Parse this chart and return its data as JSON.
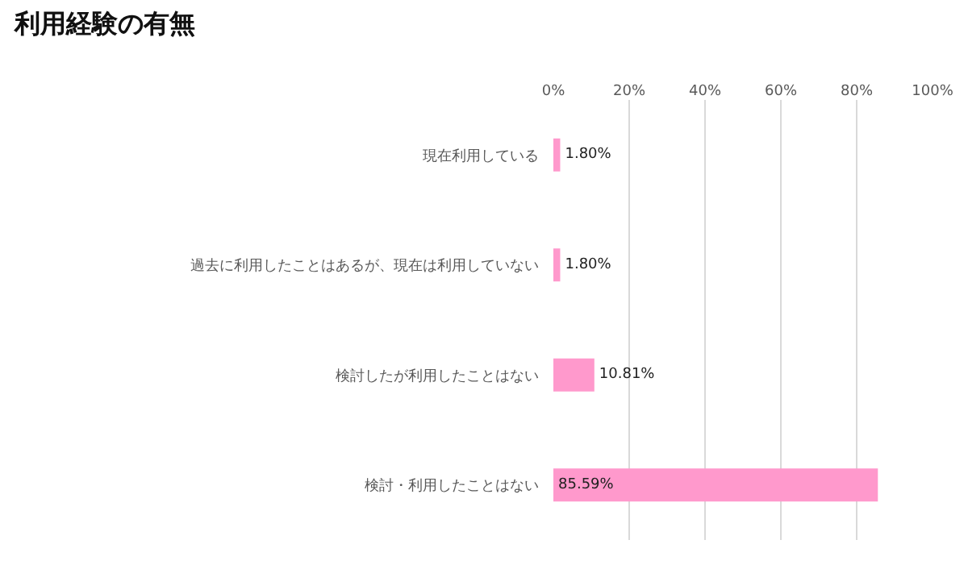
{
  "chart_data": {
    "type": "bar",
    "orientation": "horizontal",
    "title": "利用経験の有無",
    "categories": [
      "現在利用している",
      "過去に利用したことはあるが、現在は利用していない",
      "検討したが利用したことはない",
      "検討・利用したことはない"
    ],
    "values": [
      1.8,
      1.8,
      10.81,
      85.59
    ],
    "value_labels": [
      "1.80%",
      "1.80%",
      "10.81%",
      "85.59%"
    ],
    "color": "#ff99cc",
    "xlim": [
      0,
      100
    ],
    "xticks": [
      {
        "value": 0,
        "label": "0%"
      },
      {
        "value": 20,
        "label": "20%"
      },
      {
        "value": 40,
        "label": "40%"
      },
      {
        "value": 60,
        "label": "60%"
      },
      {
        "value": 80,
        "label": "80%"
      },
      {
        "value": 100,
        "label": "100%"
      }
    ],
    "grid": "x"
  }
}
